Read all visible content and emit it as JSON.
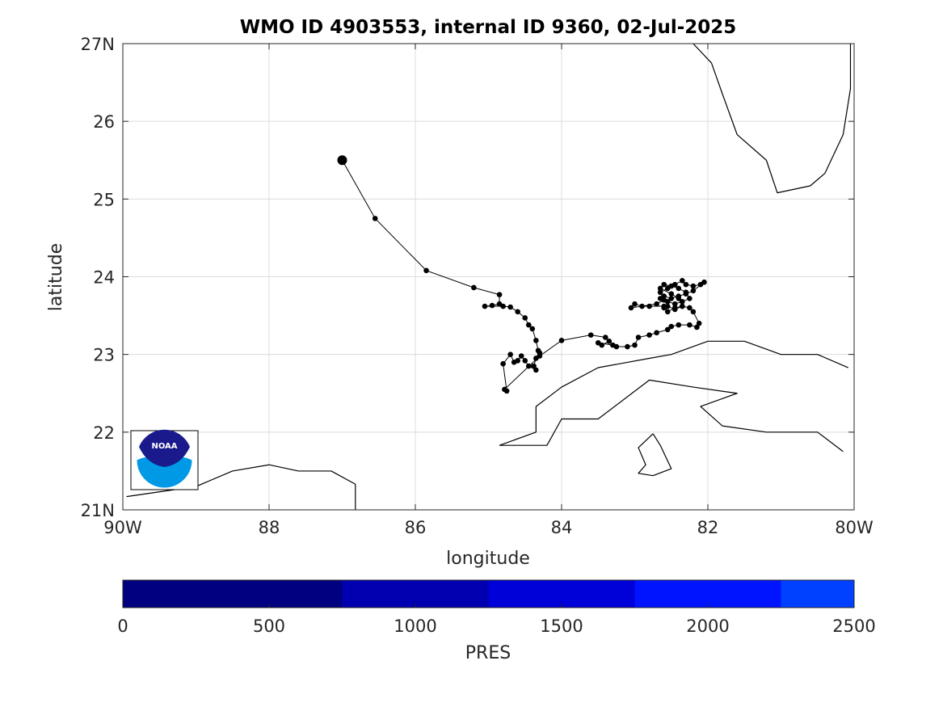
{
  "title": "WMO ID 4903553, internal ID 9360, 02-Jul-2025",
  "map": {
    "xlabel": "longitude",
    "ylabel": "latitude",
    "lon_range": [
      -90,
      -80
    ],
    "lat_range": [
      21,
      27
    ],
    "x_ticks": [
      {
        "value": -90,
        "label": "90W"
      },
      {
        "value": -88,
        "label": "88"
      },
      {
        "value": -86,
        "label": "86"
      },
      {
        "value": -84,
        "label": "84"
      },
      {
        "value": -82,
        "label": "82"
      },
      {
        "value": -80,
        "label": "80W"
      }
    ],
    "y_ticks": [
      {
        "value": 21,
        "label": "21N"
      },
      {
        "value": 22,
        "label": "22"
      },
      {
        "value": 23,
        "label": "23"
      },
      {
        "value": 24,
        "label": "24"
      },
      {
        "value": 25,
        "label": "25"
      },
      {
        "value": 26,
        "label": "26"
      },
      {
        "value": 27,
        "label": "27N"
      }
    ],
    "grid": true,
    "logo_text": "NOAA",
    "track_color": "#000000",
    "start_marker": {
      "lon": -87.0,
      "lat": 25.5
    },
    "track": [
      [
        -87.0,
        25.5
      ],
      [
        -86.55,
        24.75
      ],
      [
        -85.85,
        24.08
      ],
      [
        -85.2,
        23.86
      ],
      [
        -84.85,
        23.77
      ],
      [
        -84.85,
        23.65
      ],
      [
        -84.95,
        23.63
      ],
      [
        -85.05,
        23.62
      ],
      [
        -84.8,
        23.62
      ],
      [
        -84.7,
        23.61
      ],
      [
        -84.6,
        23.55
      ],
      [
        -84.5,
        23.47
      ],
      [
        -84.45,
        23.38
      ],
      [
        -84.4,
        23.33
      ],
      [
        -84.35,
        23.18
      ],
      [
        -84.32,
        23.05
      ],
      [
        -84.3,
        23.02
      ],
      [
        -84.35,
        22.95
      ],
      [
        -84.38,
        22.85
      ],
      [
        -84.35,
        22.8
      ],
      [
        -84.45,
        22.85
      ],
      [
        -84.5,
        22.92
      ],
      [
        -84.55,
        22.98
      ],
      [
        -84.6,
        22.92
      ],
      [
        -84.65,
        22.9
      ],
      [
        -84.7,
        23.0
      ],
      [
        -84.8,
        22.88
      ],
      [
        -84.75,
        22.53
      ],
      [
        -84.78,
        22.55
      ],
      [
        -84.3,
        22.98
      ],
      [
        -84.0,
        23.18
      ],
      [
        -83.6,
        23.25
      ],
      [
        -83.4,
        23.22
      ],
      [
        -83.35,
        23.17
      ],
      [
        -83.45,
        23.12
      ],
      [
        -83.5,
        23.15
      ],
      [
        -83.3,
        23.12
      ],
      [
        -83.25,
        23.1
      ],
      [
        -83.1,
        23.1
      ],
      [
        -83.0,
        23.12
      ],
      [
        -82.95,
        23.22
      ],
      [
        -82.8,
        23.25
      ],
      [
        -82.7,
        23.28
      ],
      [
        -82.55,
        23.32
      ],
      [
        -82.5,
        23.36
      ],
      [
        -82.4,
        23.38
      ],
      [
        -82.25,
        23.38
      ],
      [
        -82.15,
        23.35
      ],
      [
        -82.12,
        23.4
      ],
      [
        -82.2,
        23.55
      ],
      [
        -82.25,
        23.6
      ],
      [
        -82.35,
        23.62
      ],
      [
        -82.45,
        23.6
      ],
      [
        -82.55,
        23.55
      ],
      [
        -82.6,
        23.62
      ],
      [
        -82.8,
        23.62
      ],
      [
        -82.9,
        23.62
      ],
      [
        -83.0,
        23.65
      ],
      [
        -83.05,
        23.6
      ],
      [
        -82.7,
        23.65
      ],
      [
        -82.6,
        23.7
      ],
      [
        -82.65,
        23.8
      ],
      [
        -82.55,
        23.85
      ],
      [
        -82.45,
        23.9
      ],
      [
        -82.35,
        23.95
      ],
      [
        -82.3,
        23.9
      ],
      [
        -82.2,
        23.88
      ],
      [
        -82.1,
        23.9
      ],
      [
        -82.05,
        23.93
      ],
      [
        -82.2,
        23.82
      ],
      [
        -82.3,
        23.78
      ],
      [
        -82.4,
        23.75
      ],
      [
        -82.5,
        23.72
      ],
      [
        -82.6,
        23.75
      ],
      [
        -82.65,
        23.72
      ],
      [
        -82.55,
        23.68
      ],
      [
        -82.45,
        23.65
      ],
      [
        -82.35,
        23.68
      ],
      [
        -82.25,
        23.72
      ],
      [
        -82.3,
        23.8
      ],
      [
        -82.4,
        23.85
      ],
      [
        -82.5,
        23.88
      ],
      [
        -82.6,
        23.9
      ],
      [
        -82.65,
        23.85
      ],
      [
        -82.5,
        23.78
      ],
      [
        -82.4,
        23.72
      ],
      [
        -82.35,
        23.62
      ],
      [
        -82.45,
        23.58
      ],
      [
        -82.55,
        23.62
      ],
      [
        -82.6,
        23.6
      ]
    ],
    "coastlines": [
      [
        [
          -89.95,
          21.17
        ],
        [
          -89.0,
          21.3
        ],
        [
          -88.5,
          21.5
        ],
        [
          -88.0,
          21.58
        ],
        [
          -87.6,
          21.5
        ],
        [
          -87.15,
          21.5
        ],
        [
          -86.82,
          21.33
        ],
        [
          -86.82,
          21.0
        ]
      ],
      [
        [
          -84.85,
          21.83
        ],
        [
          -84.35,
          22.0
        ],
        [
          -84.35,
          22.33
        ],
        [
          -84.0,
          22.58
        ],
        [
          -83.5,
          22.83
        ],
        [
          -82.8,
          22.95
        ],
        [
          -82.5,
          23.0
        ],
        [
          -82.0,
          23.17
        ],
        [
          -81.5,
          23.17
        ],
        [
          -81.0,
          23.0
        ],
        [
          -80.5,
          23.0
        ],
        [
          -80.08,
          22.83
        ]
      ],
      [
        [
          -84.85,
          21.83
        ],
        [
          -84.2,
          21.83
        ],
        [
          -84.0,
          22.17
        ],
        [
          -83.5,
          22.17
        ],
        [
          -82.8,
          22.67
        ],
        [
          -82.2,
          22.58
        ],
        [
          -81.6,
          22.5
        ],
        [
          -82.1,
          22.33
        ],
        [
          -81.8,
          22.08
        ],
        [
          -81.2,
          22.0
        ],
        [
          -80.5,
          22.0
        ],
        [
          -80.15,
          21.75
        ]
      ],
      [
        [
          -82.75,
          21.98
        ],
        [
          -82.95,
          21.8
        ],
        [
          -82.85,
          21.58
        ],
        [
          -82.95,
          21.47
        ],
        [
          -82.75,
          21.44
        ],
        [
          -82.5,
          21.53
        ],
        [
          -82.65,
          21.83
        ],
        [
          -82.75,
          21.98
        ]
      ],
      [
        [
          -82.2,
          27.0
        ],
        [
          -81.95,
          26.75
        ],
        [
          -81.8,
          26.35
        ],
        [
          -81.6,
          25.83
        ],
        [
          -81.2,
          25.5
        ],
        [
          -81.05,
          25.08
        ],
        [
          -80.6,
          25.17
        ],
        [
          -80.4,
          25.33
        ],
        [
          -80.15,
          25.83
        ],
        [
          -80.05,
          26.42
        ],
        [
          -80.05,
          27.0
        ]
      ]
    ]
  },
  "colorbar": {
    "label": "PRES",
    "ticks": [
      "0",
      "500",
      "1000",
      "1500",
      "2000",
      "2500"
    ],
    "segments": [
      {
        "from": 0,
        "to": 750,
        "color": "#000080"
      },
      {
        "from": 750,
        "to": 1250,
        "color": "#0000b0"
      },
      {
        "from": 1250,
        "to": 1750,
        "color": "#0000d8"
      },
      {
        "from": 1750,
        "to": 2250,
        "color": "#0014ff"
      },
      {
        "from": 2250,
        "to": 2500,
        "color": "#0040ff"
      }
    ],
    "range": [
      0,
      2500
    ]
  }
}
